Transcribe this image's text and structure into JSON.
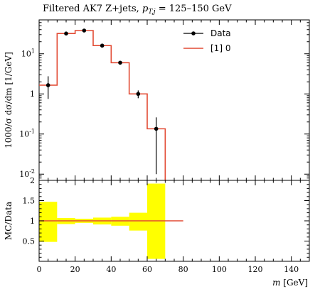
{
  "title": "Filtered AK7 Z+jets, p_{T,j} = 125–150 GeV",
  "title_parts": {
    "prefix": "Filtered AK7 Z+jets, ",
    "pt": "p",
    "sub": "T,j",
    "suffix": " = 125–150 GeV"
  },
  "chart_data": [
    {
      "type": "line",
      "panel": "main",
      "ylabel": "1000/σ dσ/dm [1/GeV]",
      "yscale": "log",
      "ylim": [
        0.007,
        70
      ],
      "xlim": [
        0,
        150
      ],
      "y_tick_labels": [
        "10^{-2}",
        "10^{-1}",
        "1",
        "10^{1}"
      ],
      "y_ticks": [
        0.01,
        0.1,
        1,
        10
      ],
      "legend_position": "top-right",
      "series": [
        {
          "name": "Data",
          "style": "points-with-errorbars",
          "x": [
            5,
            15,
            25,
            35,
            45,
            55,
            65
          ],
          "y": [
            1.65,
            32,
            38,
            16,
            6,
            1.0,
            0.135
          ],
          "yerr_low": [
            0.9,
            1.5,
            1.5,
            0.9,
            0.5,
            0.22,
            0.125
          ],
          "yerr_high": [
            1.1,
            1.5,
            1.5,
            0.9,
            0.5,
            0.22,
            0.125
          ]
        },
        {
          "name": "[1] 0",
          "style": "histogram-step",
          "bin_edges": [
            0,
            10,
            20,
            30,
            40,
            50,
            60,
            70
          ],
          "values": [
            1.65,
            32,
            38,
            16,
            6,
            1.0,
            0.135
          ]
        }
      ]
    },
    {
      "type": "area",
      "panel": "ratio",
      "ylabel": "MC/Data",
      "xlabel": "m [GeV]",
      "xlabel_parts": {
        "var": "m",
        "unit": " [GeV]"
      },
      "xlim": [
        0,
        150
      ],
      "ylim": [
        0,
        2
      ],
      "x_ticks": [
        0,
        20,
        40,
        60,
        80,
        100,
        120,
        140
      ],
      "y_ticks": [
        0.5,
        1,
        1.5,
        2
      ],
      "y_tick_labels": [
        "0.5",
        "1",
        "1.5",
        "2"
      ],
      "x_tick_labels": [
        "0",
        "20",
        "40",
        "60",
        "80",
        "100",
        "120",
        "140"
      ],
      "uncertainty_band": {
        "color": "#ffff00",
        "bin_edges": [
          0,
          10,
          20,
          30,
          40,
          50,
          60,
          70
        ],
        "low": [
          0.48,
          0.92,
          0.95,
          0.91,
          0.88,
          0.76,
          0.06
        ],
        "high": [
          1.47,
          1.07,
          1.05,
          1.08,
          1.1,
          1.2,
          1.92
        ]
      },
      "ratio_line": {
        "x": [
          0,
          80
        ],
        "y": [
          1.0,
          1.0
        ],
        "color": "#e24a33"
      }
    }
  ],
  "colors": {
    "mc_line": "#e24a33",
    "data_marker": "#000000",
    "band": "#ffff00"
  }
}
